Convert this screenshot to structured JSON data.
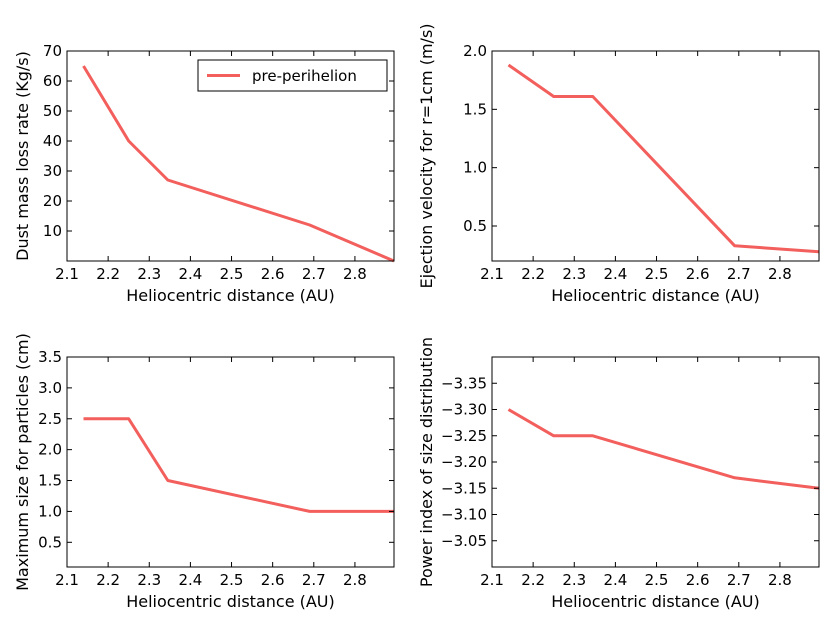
{
  "chart_data": [
    {
      "type": "line",
      "x": [
        2.14,
        2.25,
        2.345,
        2.69,
        2.895
      ],
      "series": [
        {
          "name": "pre-perihelion",
          "values": [
            65,
            40,
            27,
            12,
            0
          ]
        }
      ],
      "xlabel": "Heliocentric distance (AU)",
      "ylabel": "Dust mass loss rate (Kg/s)",
      "xlim": [
        2.1,
        2.895
      ],
      "ylim": [
        0,
        70
      ],
      "xticks": [
        2.1,
        2.2,
        2.3,
        2.4,
        2.5,
        2.6,
        2.7,
        2.8
      ],
      "xtick_labels": [
        "2.1",
        "2.2",
        "2.3",
        "2.4",
        "2.5",
        "2.6",
        "2.7",
        "2.8"
      ],
      "yticks": [
        10,
        20,
        30,
        40,
        50,
        60,
        70
      ],
      "ytick_labels": [
        "10",
        "20",
        "30",
        "40",
        "50",
        "60",
        "70"
      ],
      "legend": {
        "position": "upper right",
        "entries": [
          "pre-perihelion"
        ]
      },
      "color": "#f25f5c"
    },
    {
      "type": "line",
      "x": [
        2.14,
        2.25,
        2.345,
        2.69,
        2.895
      ],
      "series": [
        {
          "name": "pre-perihelion",
          "values": [
            1.88,
            1.61,
            1.61,
            0.33,
            0.28
          ]
        }
      ],
      "xlabel": "Heliocentric distance (AU)",
      "ylabel": "Ejection velocity for r=1cm (m/s)",
      "xlim": [
        2.1,
        2.895
      ],
      "ylim": [
        0.2,
        2.0
      ],
      "xticks": [
        2.1,
        2.2,
        2.3,
        2.4,
        2.5,
        2.6,
        2.7,
        2.8
      ],
      "xtick_labels": [
        "2.1",
        "2.2",
        "2.3",
        "2.4",
        "2.5",
        "2.6",
        "2.7",
        "2.8"
      ],
      "yticks": [
        0.5,
        1.0,
        1.5,
        2.0
      ],
      "ytick_labels": [
        "0.5",
        "1.0",
        "1.5",
        "2.0"
      ],
      "color": "#f25f5c"
    },
    {
      "type": "line",
      "x": [
        2.14,
        2.25,
        2.345,
        2.69,
        2.895
      ],
      "series": [
        {
          "name": "pre-perihelion",
          "values": [
            2.5,
            2.5,
            1.5,
            1.0,
            1.0
          ]
        }
      ],
      "xlabel": "Heliocentric distance (AU)",
      "ylabel": "Maximum size for particles (cm)",
      "xlim": [
        2.1,
        2.895
      ],
      "ylim": [
        0.1,
        3.5
      ],
      "xticks": [
        2.1,
        2.2,
        2.3,
        2.4,
        2.5,
        2.6,
        2.7,
        2.8
      ],
      "xtick_labels": [
        "2.1",
        "2.2",
        "2.3",
        "2.4",
        "2.5",
        "2.6",
        "2.7",
        "2.8"
      ],
      "yticks": [
        0.5,
        1.0,
        1.5,
        2.0,
        2.5,
        3.0,
        3.5
      ],
      "ytick_labels": [
        "0.5",
        "1.0",
        "1.5",
        "2.0",
        "2.5",
        "3.0",
        "3.5"
      ],
      "color": "#f25f5c"
    },
    {
      "type": "line",
      "x": [
        2.14,
        2.25,
        2.345,
        2.69,
        2.895
      ],
      "series": [
        {
          "name": "pre-perihelion",
          "values": [
            -3.3,
            -3.25,
            -3.25,
            -3.17,
            -3.15
          ]
        }
      ],
      "xlabel": "Heliocentric distance (AU)",
      "ylabel": "Power index of size distribution",
      "xlim": [
        2.1,
        2.895
      ],
      "ylim": [
        -3.4,
        -3.0
      ],
      "y_inverted": true,
      "xticks": [
        2.1,
        2.2,
        2.3,
        2.4,
        2.5,
        2.6,
        2.7,
        2.8
      ],
      "xtick_labels": [
        "2.1",
        "2.2",
        "2.3",
        "2.4",
        "2.5",
        "2.6",
        "2.7",
        "2.8"
      ],
      "yticks": [
        -3.35,
        -3.3,
        -3.25,
        -3.2,
        -3.15,
        -3.1,
        -3.05
      ],
      "ytick_labels": [
        "−3.35",
        "−3.30",
        "−3.25",
        "−3.20",
        "−3.15",
        "−3.10",
        "−3.05"
      ],
      "color": "#f25f5c"
    }
  ]
}
